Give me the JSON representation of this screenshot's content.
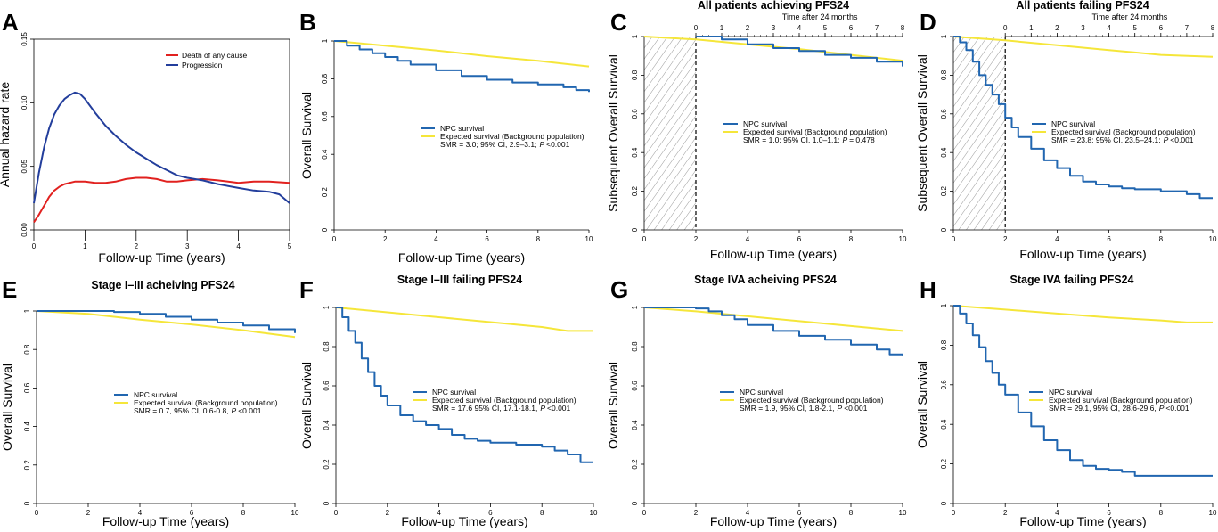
{
  "colors": {
    "npc": "#2166b0",
    "expected": "#f5e63a",
    "death_any_cause": "#e1211f",
    "progression": "#233e9c",
    "hatch": "#999999"
  },
  "panels": [
    {
      "letter": "A",
      "title": "",
      "top_label": "",
      "chart_data": {
        "type": "line",
        "title": "",
        "xlabel": "Follow-up Time (years)",
        "ylabel": "Annual hazard rate",
        "xlim": [
          0,
          5
        ],
        "ylim": [
          0,
          0.15
        ],
        "xticks": [
          "0",
          "1",
          "2",
          "3",
          "4",
          "5"
        ],
        "yticks": [
          "0.00",
          "0.05",
          "0.10",
          "0.15"
        ],
        "legend": {
          "placement": "top-right",
          "lines": [
            "Death of any cause",
            "Progression"
          ]
        },
        "grid": false,
        "series": [
          {
            "name": "Death of any cause",
            "color_key": "death_any_cause",
            "x": [
              0,
              0.1,
              0.2,
              0.3,
              0.4,
              0.5,
              0.6,
              0.7,
              0.8,
              1.0,
              1.2,
              1.4,
              1.6,
              1.8,
              2.0,
              2.2,
              2.4,
              2.6,
              2.8,
              3.0,
              3.3,
              3.6,
              4.0,
              4.3,
              4.6,
              5.0
            ],
            "y": [
              0.006,
              0.012,
              0.019,
              0.026,
              0.031,
              0.034,
              0.036,
              0.037,
              0.038,
              0.038,
              0.037,
              0.037,
              0.038,
              0.04,
              0.041,
              0.041,
              0.04,
              0.038,
              0.038,
              0.039,
              0.04,
              0.039,
              0.037,
              0.038,
              0.038,
              0.037
            ]
          },
          {
            "name": "Progression",
            "color_key": "progression",
            "x": [
              0,
              0.1,
              0.2,
              0.3,
              0.4,
              0.5,
              0.6,
              0.7,
              0.8,
              0.9,
              1.0,
              1.2,
              1.4,
              1.6,
              1.8,
              2.0,
              2.2,
              2.4,
              2.6,
              2.8,
              3.0,
              3.3,
              3.6,
              4.0,
              4.3,
              4.6,
              4.8,
              5.0
            ],
            "y": [
              0.021,
              0.045,
              0.065,
              0.08,
              0.091,
              0.098,
              0.103,
              0.106,
              0.108,
              0.107,
              0.103,
              0.092,
              0.082,
              0.074,
              0.067,
              0.061,
              0.056,
              0.051,
              0.047,
              0.043,
              0.041,
              0.039,
              0.036,
              0.033,
              0.031,
              0.03,
              0.028,
              0.021
            ]
          }
        ]
      }
    },
    {
      "letter": "B",
      "title": "",
      "top_label": "",
      "chart_data": {
        "type": "line",
        "title": "",
        "xlabel": "Follow-up Time (years)",
        "ylabel": "Overall Survival",
        "xlim": [
          0,
          10
        ],
        "ylim": [
          0,
          1
        ],
        "xticks": [
          "0",
          "2",
          "4",
          "6",
          "8",
          "10"
        ],
        "yticks": [
          "0",
          "0.2",
          "0.4",
          "0.6",
          "0.8",
          "1"
        ],
        "legend": {
          "placement": "right",
          "lines": [
            "NPC survival",
            "Expected survival (Background population)"
          ],
          "smr": "SMR = 3.0; 95% CI, 2.9–3.1;",
          "p_label": "P",
          "p_value": "<0.001"
        },
        "series": [
          {
            "name": "NPC survival",
            "color_key": "npc",
            "x": [
              0,
              0.5,
              1,
              1.5,
              2,
              2.5,
              3,
              4,
              5,
              6,
              7,
              8,
              9,
              9.5,
              10
            ],
            "y": [
              1,
              0.975,
              0.955,
              0.935,
              0.915,
              0.895,
              0.875,
              0.845,
              0.815,
              0.795,
              0.78,
              0.77,
              0.755,
              0.74,
              0.73
            ]
          },
          {
            "name": "Expected survival (Background population)",
            "color_key": "expected",
            "x": [
              0,
              2,
              4,
              6,
              8,
              10
            ],
            "y": [
              1,
              0.975,
              0.95,
              0.92,
              0.895,
              0.865
            ]
          }
        ]
      }
    },
    {
      "letter": "C",
      "title": "All patients achieving PFS24",
      "top_label": "Time after 24 months",
      "top_ticks": [
        "0",
        "1",
        "2",
        "3",
        "4",
        "5",
        "6",
        "7",
        "8"
      ],
      "chart_data": {
        "type": "line",
        "title": "All patients achieving PFS24",
        "xlabel": "Follow-up Time (years)",
        "ylabel": "Subsequent Overall Survival",
        "xlim": [
          0,
          10
        ],
        "ylim": [
          0,
          1
        ],
        "xticks": [
          "0",
          "2",
          "4",
          "6",
          "8",
          "10"
        ],
        "yticks": [
          "0",
          "0.2",
          "0.4",
          "0.6",
          "0.8",
          "1"
        ],
        "landmark_x": 2,
        "legend": {
          "placement": "right",
          "lines": [
            "NPC survival",
            "Expected survival (Background population)"
          ],
          "smr": "SMR = 1.0; 95% CI, 1.0–1.1;",
          "p_label": "P",
          "p_value": "= 0.478"
        },
        "series": [
          {
            "name": "NPC survival",
            "color_key": "npc",
            "x": [
              2,
              3,
              4,
              5,
              6,
              7,
              8,
              9,
              10
            ],
            "y": [
              1,
              0.985,
              0.96,
              0.94,
              0.925,
              0.905,
              0.89,
              0.87,
              0.845
            ]
          },
          {
            "name": "Expected survival (Background population)",
            "color_key": "expected",
            "x": [
              0,
              2,
              4,
              6,
              8,
              10
            ],
            "y": [
              1,
              0.985,
              0.96,
              0.935,
              0.905,
              0.875
            ]
          }
        ]
      }
    },
    {
      "letter": "D",
      "title": "All patients failing PFS24",
      "top_label": "Time after 24 months",
      "top_ticks": [
        "0",
        "1",
        "2",
        "3",
        "4",
        "5",
        "6",
        "7",
        "8"
      ],
      "chart_data": {
        "type": "line",
        "title": "All patients failing PFS24",
        "xlabel": "Follow-up Time (years)",
        "ylabel": "Subsequent Overall Survival",
        "xlim": [
          0,
          10
        ],
        "ylim": [
          0,
          1
        ],
        "xticks": [
          "0",
          "2",
          "4",
          "6",
          "8",
          "10"
        ],
        "yticks": [
          "0",
          "0.2",
          "0.4",
          "0.6",
          "0.8",
          "1"
        ],
        "landmark_x": 2,
        "legend": {
          "placement": "right",
          "lines": [
            "NPC survival",
            "Expected survival (Background population)"
          ],
          "smr": "SMR = 23.8; 95% CI, 23.5–24.1;",
          "p_label": "P",
          "p_value": "<0.001"
        },
        "series": [
          {
            "name": "NPC survival",
            "color_key": "npc",
            "x": [
              0,
              0.25,
              0.5,
              0.75,
              1,
              1.25,
              1.5,
              1.75,
              2,
              2.25,
              2.5,
              3,
              3.5,
              4,
              4.5,
              5,
              5.5,
              6,
              6.5,
              7,
              8,
              9,
              9.5,
              10
            ],
            "y": [
              1,
              0.97,
              0.93,
              0.87,
              0.8,
              0.75,
              0.7,
              0.65,
              0.58,
              0.53,
              0.48,
              0.42,
              0.36,
              0.32,
              0.28,
              0.25,
              0.235,
              0.225,
              0.215,
              0.21,
              0.2,
              0.185,
              0.165,
              0.165
            ]
          },
          {
            "name": "Expected survival (Background population)",
            "color_key": "expected",
            "x": [
              0,
              2,
              4,
              6,
              8,
              10
            ],
            "y": [
              1,
              0.98,
              0.955,
              0.93,
              0.905,
              0.895
            ]
          }
        ]
      }
    },
    {
      "letter": "E",
      "title": "Stage I–III acheiving PFS24",
      "top_label": "",
      "chart_data": {
        "type": "line",
        "title": "Stage I–III acheiving PFS24",
        "xlabel": "Follow-up Time (years)",
        "ylabel": "Overall Survival",
        "xlim": [
          0,
          10
        ],
        "ylim": [
          0,
          1
        ],
        "xticks": [
          "0",
          "2",
          "4",
          "6",
          "8",
          "10"
        ],
        "yticks": [
          "0",
          "0.2",
          "0.4",
          "0.6",
          "0.8",
          "1"
        ],
        "legend": {
          "placement": "right",
          "lines": [
            "NPC survival",
            "Expected survival (Background population)"
          ],
          "smr": "SMR = 0.7, 95% CI, 0.6-0.8,",
          "p_label": "P",
          "p_value": "<0.001"
        },
        "series": [
          {
            "name": "NPC survival",
            "color_key": "npc",
            "x": [
              0,
              2,
              3,
              4,
              5,
              6,
              7,
              8,
              9,
              10
            ],
            "y": [
              1,
              1,
              0.995,
              0.985,
              0.97,
              0.955,
              0.94,
              0.925,
              0.905,
              0.885
            ]
          },
          {
            "name": "Expected survival (Background population)",
            "color_key": "expected",
            "x": [
              0,
              2,
              4,
              6,
              8,
              10
            ],
            "y": [
              1,
              0.985,
              0.955,
              0.93,
              0.9,
              0.865
            ]
          }
        ]
      }
    },
    {
      "letter": "F",
      "title": "Stage I–III failing PFS24",
      "top_label": "",
      "chart_data": {
        "type": "line",
        "title": "Stage I–III failing PFS24",
        "xlabel": "Follow-up Time (years)",
        "ylabel": "Overall Survival",
        "xlim": [
          0,
          10
        ],
        "ylim": [
          0,
          1
        ],
        "xticks": [
          "0",
          "2",
          "4",
          "6",
          "8",
          "10"
        ],
        "yticks": [
          "0",
          "0.2",
          "0.4",
          "0.6",
          "0.8",
          "1"
        ],
        "legend": {
          "placement": "right",
          "lines": [
            "NPC survival",
            "Expected survival (Background population)"
          ],
          "smr": "SMR = 17.6 95% CI, 17.1-18.1,",
          "p_label": "P",
          "p_value": "<0.001"
        },
        "series": [
          {
            "name": "NPC survival",
            "color_key": "npc",
            "x": [
              0,
              0.25,
              0.5,
              0.75,
              1,
              1.25,
              1.5,
              1.75,
              2,
              2.5,
              3,
              3.5,
              4,
              4.5,
              5,
              5.5,
              6,
              6.5,
              7,
              8,
              8.5,
              9,
              9.5,
              10
            ],
            "y": [
              1,
              0.95,
              0.88,
              0.82,
              0.74,
              0.67,
              0.6,
              0.55,
              0.5,
              0.45,
              0.42,
              0.4,
              0.38,
              0.35,
              0.33,
              0.32,
              0.31,
              0.31,
              0.3,
              0.29,
              0.27,
              0.25,
              0.21,
              0.21
            ]
          },
          {
            "name": "Expected survival (Background population)",
            "color_key": "expected",
            "x": [
              0,
              2,
              4,
              6,
              8,
              9,
              10
            ],
            "y": [
              1,
              0.975,
              0.95,
              0.925,
              0.9,
              0.88,
              0.88
            ]
          }
        ]
      }
    },
    {
      "letter": "G",
      "title": "Stage IVA acheiving PFS24",
      "top_label": "",
      "chart_data": {
        "type": "line",
        "title": "Stage IVA acheiving PFS24",
        "xlabel": "Follow-up Time (years)",
        "ylabel": "Overall Survival",
        "xlim": [
          0,
          10
        ],
        "ylim": [
          0,
          1
        ],
        "xticks": [
          "0",
          "2",
          "4",
          "6",
          "8",
          "10"
        ],
        "yticks": [
          "0",
          "0.2",
          "0.4",
          "0.6",
          "0.8",
          "1"
        ],
        "legend": {
          "placement": "right",
          "lines": [
            "NPC survival",
            "Expected survival (Background population)"
          ],
          "smr": "SMR = 1.9, 95% CI, 1.8-2.1,",
          "p_label": "P",
          "p_value": "<0.001"
        },
        "series": [
          {
            "name": "NPC survival",
            "color_key": "npc",
            "x": [
              0,
              1.5,
              2,
              2.5,
              3,
              3.5,
              4,
              5,
              6,
              7,
              8,
              9,
              9.5,
              10
            ],
            "y": [
              1,
              1,
              0.995,
              0.98,
              0.96,
              0.94,
              0.91,
              0.88,
              0.855,
              0.835,
              0.81,
              0.785,
              0.76,
              0.755
            ]
          },
          {
            "name": "Expected survival (Background population)",
            "color_key": "expected",
            "x": [
              0,
              2,
              4,
              6,
              8,
              10
            ],
            "y": [
              1,
              0.98,
              0.955,
              0.93,
              0.905,
              0.88
            ]
          }
        ]
      }
    },
    {
      "letter": "H",
      "title": "Stage IVA failing PFS24",
      "top_label": "",
      "chart_data": {
        "type": "line",
        "title": "Stage IVA failing PFS24",
        "xlabel": "Follow-up Time (years)",
        "ylabel": "Overall Survival",
        "xlim": [
          0,
          10
        ],
        "ylim": [
          0,
          1
        ],
        "xticks": [
          "0",
          "2",
          "4",
          "6",
          "8",
          "10"
        ],
        "yticks": [
          "0",
          "0.2",
          "0.4",
          "0.6",
          "0.8",
          "1"
        ],
        "legend": {
          "placement": "right",
          "lines": [
            "NPC survival",
            "Expected survival (Background population)"
          ],
          "smr": "SMR = 29.1, 95% CI, 28.6-29.6,",
          "p_label": "P",
          "p_value": "<0.001"
        },
        "series": [
          {
            "name": "NPC survival",
            "color_key": "npc",
            "x": [
              0,
              0.25,
              0.5,
              0.75,
              1,
              1.25,
              1.5,
              1.75,
              2,
              2.5,
              3,
              3.5,
              4,
              4.5,
              5,
              5.5,
              6,
              6.5,
              7,
              7.5,
              8,
              9,
              10
            ],
            "y": [
              1,
              0.96,
              0.91,
              0.85,
              0.79,
              0.72,
              0.66,
              0.6,
              0.55,
              0.46,
              0.39,
              0.32,
              0.27,
              0.22,
              0.19,
              0.175,
              0.17,
              0.16,
              0.14,
              0.14,
              0.14,
              0.14,
              0.14
            ]
          },
          {
            "name": "Expected survival (Background population)",
            "color_key": "expected",
            "x": [
              0,
              2,
              4,
              6,
              8,
              9,
              10
            ],
            "y": [
              1,
              0.98,
              0.96,
              0.94,
              0.925,
              0.915,
              0.915
            ]
          }
        ]
      }
    }
  ]
}
